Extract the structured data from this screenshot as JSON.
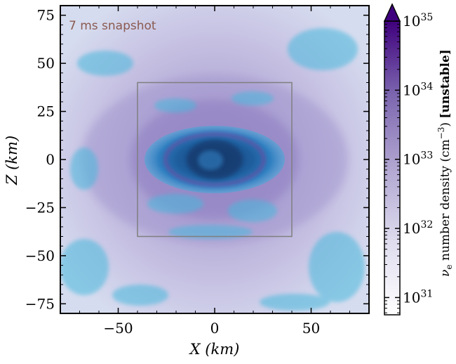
{
  "chart_data": {
    "type": "heatmap",
    "annotation": "7 ms snapshot",
    "xlabel": "X (km)",
    "ylabel": "Z (km)",
    "xlim": [
      -80,
      80
    ],
    "ylim": [
      -80,
      80
    ],
    "xticks": [
      -50,
      0,
      50
    ],
    "yticks": [
      75,
      50,
      25,
      0,
      -25,
      -50,
      -75
    ],
    "xtick_labels": [
      "−50",
      "0",
      "50"
    ],
    "ytick_labels": [
      "75",
      "50",
      "25",
      "0",
      "−25",
      "−50",
      "−75"
    ],
    "inset_box": {
      "x": [
        -40,
        40
      ],
      "z": [
        -40,
        40
      ]
    },
    "colorbar": {
      "label": "ν_e number density (cm⁻³) [unstable]",
      "label_main": "ν",
      "label_sub": "e",
      "label_mid": " number density (cm",
      "label_sup": "−3",
      "label_end": ") ",
      "label_bold": "[unstable]",
      "scale": "log",
      "range_exp": [
        30.75,
        35.0
      ],
      "tick_exps": [
        35,
        34,
        33,
        32,
        31
      ],
      "tick_base": "10",
      "tick_exp_labels": [
        "35",
        "34",
        "33",
        "32",
        "31"
      ],
      "extend": "max",
      "colors": [
        "#ffffff",
        "#d9d7ea",
        "#a89ccb",
        "#7a62ab",
        "#3f007d"
      ]
    },
    "overlay_color": "#46b8dc",
    "core_color": "#1f5f9f",
    "ring_color": "#c01a8c"
  }
}
